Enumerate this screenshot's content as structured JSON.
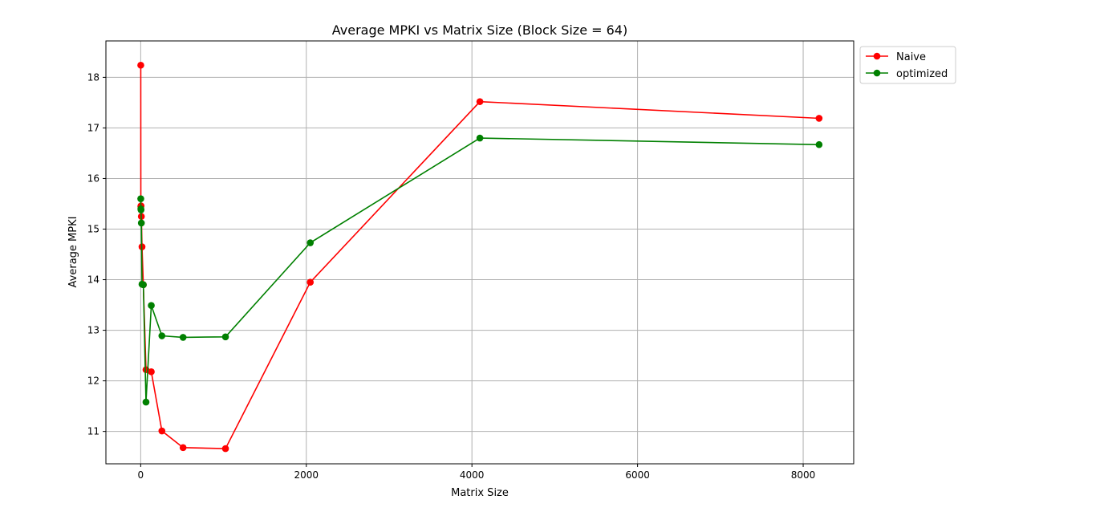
{
  "chart_data": {
    "type": "line",
    "title": "Average MPKI vs Matrix Size (Block Size = 64)",
    "xlabel": "Matrix Size",
    "ylabel": "Average MPKI",
    "xlim": [
      -420,
      8610
    ],
    "ylim": [
      10.36,
      18.72
    ],
    "x_ticks": [
      0,
      2000,
      4000,
      6000,
      8000
    ],
    "y_ticks": [
      11,
      12,
      13,
      14,
      15,
      16,
      17,
      18
    ],
    "grid": true,
    "legend_position": "top-right-outside",
    "x": [
      1,
      2,
      4,
      8,
      16,
      32,
      64,
      128,
      256,
      512,
      1024,
      2048,
      4096,
      8192
    ],
    "series": [
      {
        "name": "Naive",
        "color": "#ff0000",
        "marker": "circle",
        "values": [
          18.24,
          15.45,
          15.46,
          15.25,
          14.65,
          13.9,
          12.22,
          12.18,
          11.01,
          10.68,
          10.66,
          13.95,
          17.52,
          17.19
        ]
      },
      {
        "name": "optimized",
        "color": "#008000",
        "marker": "circle",
        "values": [
          15.6,
          15.4,
          15.38,
          15.12,
          13.91,
          13.9,
          11.58,
          13.49,
          12.89,
          12.86,
          12.87,
          14.73,
          16.8,
          16.67
        ]
      }
    ]
  }
}
